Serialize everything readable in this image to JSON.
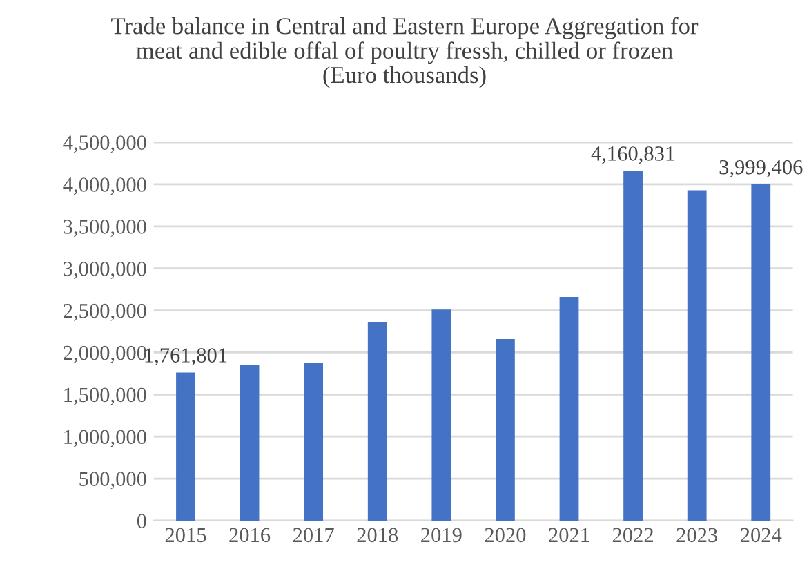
{
  "chart_data": {
    "type": "bar",
    "title": "Trade balance in Central and Eastern Europe Aggregation for\nmeat and edible offal of poultry fressh, chilled or frozen\n(Euro thousands)",
    "categories": [
      "2015",
      "2016",
      "2017",
      "2018",
      "2019",
      "2020",
      "2021",
      "2022",
      "2023",
      "2024"
    ],
    "values": [
      1761801,
      1850000,
      1880000,
      2360000,
      2510000,
      2160000,
      2660000,
      4160831,
      3930000,
      3999406
    ],
    "value_labels": [
      "1,761,801",
      null,
      null,
      null,
      null,
      null,
      null,
      "4,160,831",
      null,
      "3,999,406"
    ],
    "color": "#4472c4",
    "ylim": [
      0,
      4500000
    ],
    "yticks": [
      {
        "value": 0,
        "label": "0"
      },
      {
        "value": 500000,
        "label": "500,000"
      },
      {
        "value": 1000000,
        "label": "1,000,000"
      },
      {
        "value": 1500000,
        "label": "1,500,000"
      },
      {
        "value": 2000000,
        "label": "2,000,000"
      },
      {
        "value": 2500000,
        "label": "2,500,000"
      },
      {
        "value": 3000000,
        "label": "3,000,000"
      },
      {
        "value": 3500000,
        "label": "3,500,000"
      },
      {
        "value": 4000000,
        "label": "4,000,000"
      },
      {
        "value": 4500000,
        "label": "4,500,000"
      }
    ],
    "grid": "y"
  }
}
